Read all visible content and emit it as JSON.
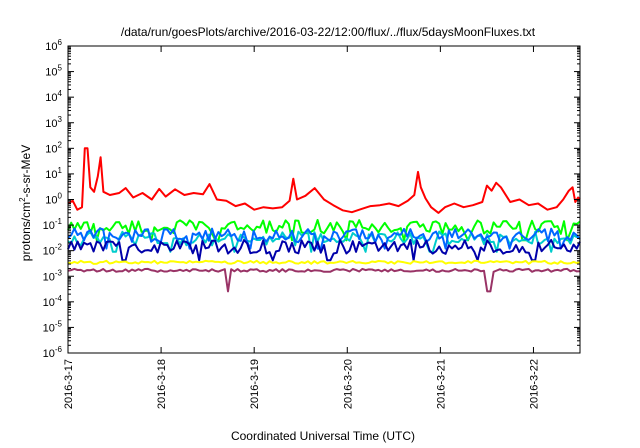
{
  "chart_data": {
    "type": "line",
    "title": "/data/run/goesPlots/archive/2016-03-22/12:00/flux/../flux/5daysMoonFluxes.txt",
    "xlabel": "Coordinated Universal Time (UTC)",
    "ylabel": {
      "prefix": "protons/cm",
      "sup": "2",
      "suffix": "-s-sr-MeV"
    },
    "y_scale": "log",
    "ylim": [
      1e-06,
      1000000.0
    ],
    "y_ticks": [
      {
        "value": 1e-06,
        "base": "10",
        "exp": "-6"
      },
      {
        "value": 1e-05,
        "base": "10",
        "exp": "-5"
      },
      {
        "value": 0.0001,
        "base": "10",
        "exp": "-4"
      },
      {
        "value": 0.001,
        "base": "10",
        "exp": "-3"
      },
      {
        "value": 0.01,
        "base": "10",
        "exp": "-2"
      },
      {
        "value": 0.1,
        "base": "10",
        "exp": "-1"
      },
      {
        "value": 1,
        "base": "10",
        "exp": "0"
      },
      {
        "value": 10.0,
        "base": "10",
        "exp": "1"
      },
      {
        "value": 100.0,
        "base": "10",
        "exp": "2"
      },
      {
        "value": 1000.0,
        "base": "10",
        "exp": "3"
      },
      {
        "value": 10000.0,
        "base": "10",
        "exp": "4"
      },
      {
        "value": 100000.0,
        "base": "10",
        "exp": "5"
      },
      {
        "value": 1000000.0,
        "base": "10",
        "exp": "6"
      }
    ],
    "xlim": [
      0,
      5.5
    ],
    "x_ticks": [
      {
        "value": 0,
        "label": "2016-3-17"
      },
      {
        "value": 1,
        "label": "2016-3-18"
      },
      {
        "value": 2,
        "label": "2016-3-19"
      },
      {
        "value": 3,
        "label": "2016-3-20"
      },
      {
        "value": 4,
        "label": "2016-3-21"
      },
      {
        "value": 5,
        "label": "2016-3-22"
      }
    ],
    "grid": false,
    "legend": "none",
    "series": [
      {
        "color": "#ff0000",
        "points": [
          [
            0,
            0.7
          ],
          [
            0.05,
            0.9
          ],
          [
            0.1,
            0.4
          ],
          [
            0.15,
            0.5
          ],
          [
            0.18,
            100
          ],
          [
            0.21,
            100
          ],
          [
            0.24,
            3
          ],
          [
            0.28,
            2
          ],
          [
            0.32,
            8
          ],
          [
            0.35,
            45
          ],
          [
            0.38,
            2
          ],
          [
            0.45,
            1.5
          ],
          [
            0.55,
            1.8
          ],
          [
            0.62,
            2.8
          ],
          [
            0.7,
            1.2
          ],
          [
            0.8,
            1.8
          ],
          [
            0.9,
            1.0
          ],
          [
            0.98,
            2.6
          ],
          [
            1.05,
            1.3
          ],
          [
            1.15,
            2.5
          ],
          [
            1.25,
            1.5
          ],
          [
            1.35,
            1.8
          ],
          [
            1.45,
            1.6
          ],
          [
            1.52,
            4.0
          ],
          [
            1.6,
            1.0
          ],
          [
            1.7,
            0.9
          ],
          [
            1.8,
            0.55
          ],
          [
            1.9,
            0.7
          ],
          [
            2.0,
            0.4
          ],
          [
            2.1,
            0.5
          ],
          [
            2.2,
            0.45
          ],
          [
            2.3,
            0.5
          ],
          [
            2.38,
            0.9
          ],
          [
            2.42,
            6.5
          ],
          [
            2.46,
            1.0
          ],
          [
            2.55,
            1.4
          ],
          [
            2.65,
            2.8
          ],
          [
            2.75,
            1.0
          ],
          [
            2.85,
            0.6
          ],
          [
            2.95,
            0.38
          ],
          [
            3.05,
            0.32
          ],
          [
            3.15,
            0.42
          ],
          [
            3.25,
            0.55
          ],
          [
            3.35,
            0.6
          ],
          [
            3.45,
            0.7
          ],
          [
            3.55,
            0.55
          ],
          [
            3.65,
            0.9
          ],
          [
            3.72,
            1.5
          ],
          [
            3.76,
            12
          ],
          [
            3.79,
            3
          ],
          [
            3.84,
            1.1
          ],
          [
            3.9,
            0.5
          ],
          [
            3.98,
            0.3
          ],
          [
            4.05,
            0.5
          ],
          [
            4.15,
            0.7
          ],
          [
            4.25,
            0.5
          ],
          [
            4.35,
            0.6
          ],
          [
            4.45,
            0.8
          ],
          [
            4.5,
            3.5
          ],
          [
            4.55,
            2.2
          ],
          [
            4.6,
            4.5
          ],
          [
            4.65,
            3.0
          ],
          [
            4.75,
            0.8
          ],
          [
            4.85,
            1.0
          ],
          [
            4.95,
            0.6
          ],
          [
            5.05,
            0.7
          ],
          [
            5.15,
            0.4
          ],
          [
            5.25,
            0.5
          ],
          [
            5.32,
            1.0
          ],
          [
            5.38,
            2.2
          ],
          [
            5.42,
            3.0
          ],
          [
            5.45,
            0.8
          ],
          [
            5.48,
            1.2
          ],
          [
            5.5,
            1.0
          ]
        ]
      },
      {
        "color": "#00ff00",
        "level": 0.085,
        "dips": [
          0.3,
          0.9,
          1.6,
          2.4,
          3.0,
          3.6,
          4.3,
          4.9,
          5.35
        ]
      },
      {
        "color": "#00cccc",
        "level": 0.03,
        "dips": [
          0.5,
          1.1,
          1.8,
          2.6,
          3.2,
          3.9,
          4.6,
          5.2
        ]
      },
      {
        "color": "#0066ff",
        "level": 0.04,
        "dips": [
          0.4,
          1.3,
          1.95,
          2.7,
          3.4,
          4.05,
          4.75,
          5.3
        ]
      },
      {
        "color": "#0000aa",
        "level": 0.014,
        "dips": [
          0.6,
          1.4,
          2.2,
          2.8,
          3.7,
          4.4,
          5.0
        ]
      },
      {
        "color": "#ffff00",
        "level": 0.0035
      },
      {
        "color": "#993366",
        "level": 0.0017,
        "dips": [
          1.72,
          4.52
        ]
      }
    ]
  }
}
